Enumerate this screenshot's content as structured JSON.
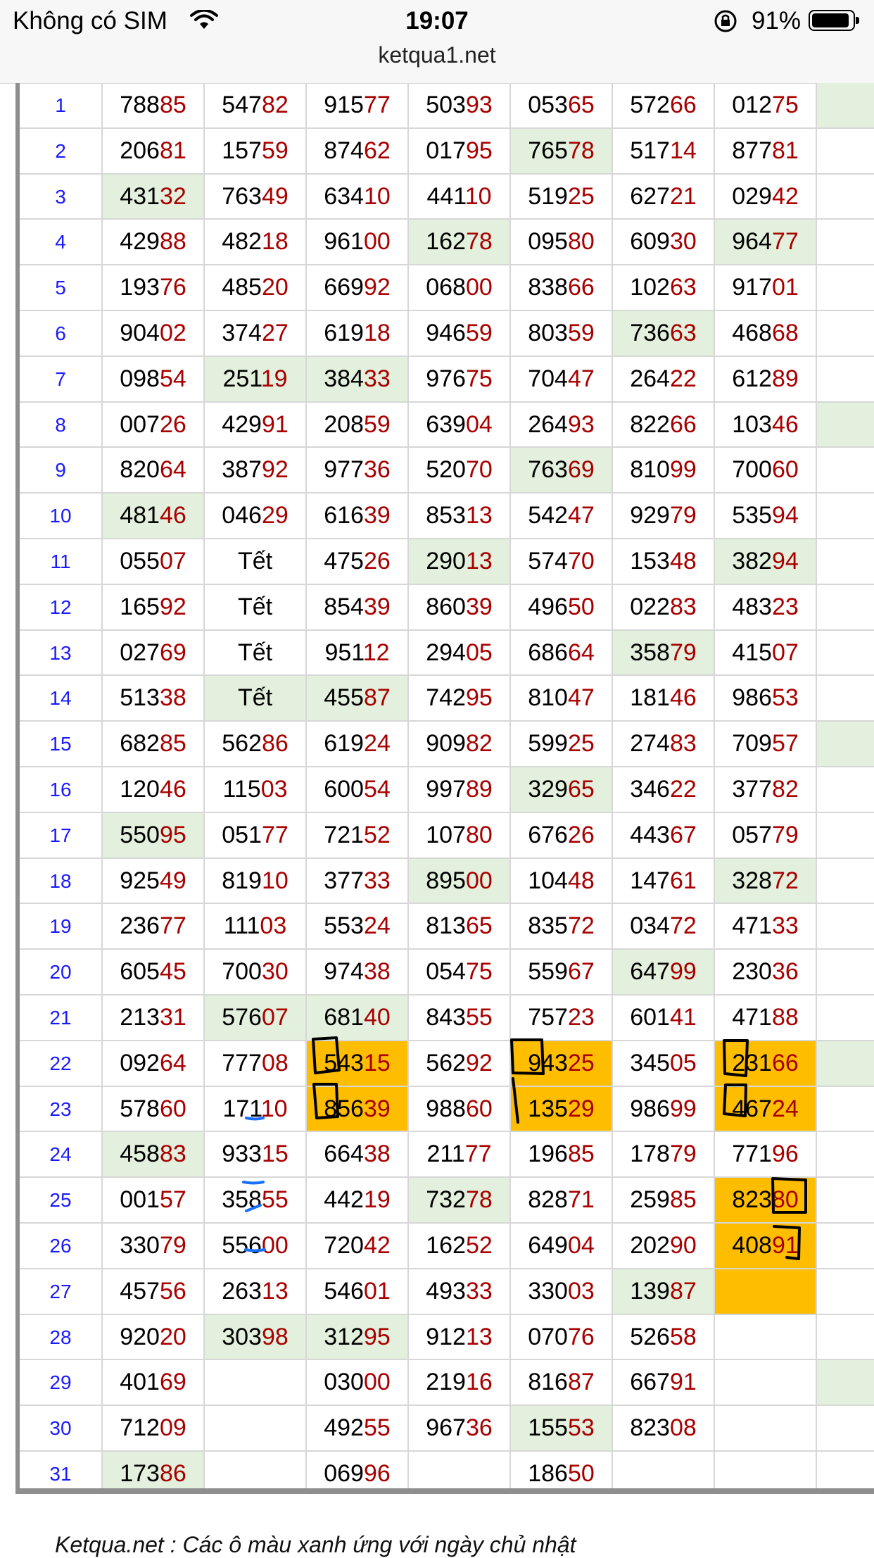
{
  "status_bar": {
    "carrier": "Không có SIM",
    "time": "19:07",
    "battery": "91%",
    "battery_level": 0.91
  },
  "browser": {
    "url": "ketqua1.net"
  },
  "table": {
    "rows": [
      {
        "day": "1",
        "cells": [
          "78885",
          "54782",
          "91577",
          "50393",
          "05365",
          "57266",
          "01275",
          ""
        ]
      },
      {
        "day": "2",
        "cells": [
          "20681",
          "15759",
          "87462",
          "01795",
          "76578",
          "51714",
          "87781",
          ""
        ]
      },
      {
        "day": "3",
        "cells": [
          "43132",
          "76349",
          "63410",
          "44110",
          "51925",
          "62721",
          "02942",
          ""
        ]
      },
      {
        "day": "4",
        "cells": [
          "42988",
          "48218",
          "96100",
          "16278",
          "09580",
          "60930",
          "96477",
          ""
        ]
      },
      {
        "day": "5",
        "cells": [
          "19376",
          "48520",
          "66992",
          "06800",
          "83866",
          "10263",
          "91701",
          ""
        ]
      },
      {
        "day": "6",
        "cells": [
          "90402",
          "37427",
          "61918",
          "94659",
          "80359",
          "73663",
          "46868",
          ""
        ]
      },
      {
        "day": "7",
        "cells": [
          "09854",
          "25119",
          "38433",
          "97675",
          "70447",
          "26422",
          "61289",
          ""
        ]
      },
      {
        "day": "8",
        "cells": [
          "00726",
          "42991",
          "20859",
          "63904",
          "26493",
          "82266",
          "10346",
          ""
        ]
      },
      {
        "day": "9",
        "cells": [
          "82064",
          "38792",
          "97736",
          "52070",
          "76369",
          "81099",
          "70060",
          ""
        ]
      },
      {
        "day": "10",
        "cells": [
          "48146",
          "04629",
          "61639",
          "85313",
          "54247",
          "92979",
          "53594",
          ""
        ]
      },
      {
        "day": "11",
        "cells": [
          "05507",
          "Tết",
          "47526",
          "29013",
          "57470",
          "15348",
          "38294",
          ""
        ]
      },
      {
        "day": "12",
        "cells": [
          "16592",
          "Tết",
          "85439",
          "86039",
          "49650",
          "02283",
          "48323",
          ""
        ]
      },
      {
        "day": "13",
        "cells": [
          "02769",
          "Tết",
          "95112",
          "29405",
          "68664",
          "35879",
          "41507",
          ""
        ]
      },
      {
        "day": "14",
        "cells": [
          "51338",
          "Tết",
          "45587",
          "74295",
          "81047",
          "18146",
          "98653",
          ""
        ]
      },
      {
        "day": "15",
        "cells": [
          "68285",
          "56286",
          "61924",
          "90982",
          "59925",
          "27483",
          "70957",
          ""
        ]
      },
      {
        "day": "16",
        "cells": [
          "12046",
          "11503",
          "60054",
          "99789",
          "32965",
          "34622",
          "37782",
          ""
        ]
      },
      {
        "day": "17",
        "cells": [
          "55095",
          "05177",
          "72152",
          "10780",
          "67626",
          "44367",
          "05779",
          ""
        ]
      },
      {
        "day": "18",
        "cells": [
          "92549",
          "81910",
          "37733",
          "89500",
          "10448",
          "14761",
          "32872",
          ""
        ]
      },
      {
        "day": "19",
        "cells": [
          "23677",
          "11103",
          "55324",
          "81365",
          "83572",
          "03472",
          "47133",
          ""
        ]
      },
      {
        "day": "20",
        "cells": [
          "60545",
          "70030",
          "97438",
          "05475",
          "55967",
          "64799",
          "23036",
          ""
        ]
      },
      {
        "day": "21",
        "cells": [
          "21331",
          "57607",
          "68140",
          "84355",
          "75723",
          "60141",
          "47188",
          ""
        ]
      },
      {
        "day": "22",
        "cells": [
          "09264",
          "77708",
          "54315",
          "56292",
          "94325",
          "34505",
          "23166",
          ""
        ]
      },
      {
        "day": "23",
        "cells": [
          "57860",
          "17110",
          "85639",
          "98860",
          "13529",
          "98699",
          "46724",
          ""
        ]
      },
      {
        "day": "24",
        "cells": [
          "45883",
          "93315",
          "66438",
          "21177",
          "19685",
          "17879",
          "77196",
          ""
        ]
      },
      {
        "day": "25",
        "cells": [
          "00157",
          "35855",
          "44219",
          "73278",
          "82871",
          "25985",
          "82380",
          ""
        ]
      },
      {
        "day": "26",
        "cells": [
          "33079",
          "55600",
          "72042",
          "16252",
          "64904",
          "20290",
          "40891",
          ""
        ]
      },
      {
        "day": "27",
        "cells": [
          "45756",
          "26313",
          "54601",
          "49333",
          "33003",
          "13987",
          "",
          ""
        ]
      },
      {
        "day": "28",
        "cells": [
          "92020",
          "30398",
          "31295",
          "91213",
          "07076",
          "52658",
          "",
          ""
        ]
      },
      {
        "day": "29",
        "cells": [
          "40169",
          "",
          "03000",
          "21916",
          "81687",
          "66791",
          "",
          ""
        ]
      },
      {
        "day": "30",
        "cells": [
          "71209",
          "",
          "49255",
          "96736",
          "15553",
          "82308",
          "",
          ""
        ]
      },
      {
        "day": "31",
        "cells": [
          "17386",
          "",
          "06996",
          "",
          "18650",
          "",
          "",
          ""
        ]
      }
    ],
    "green_cells": [
      [
        1,
        7
      ],
      [
        2,
        4
      ],
      [
        3,
        0
      ],
      [
        4,
        3
      ],
      [
        4,
        6
      ],
      [
        6,
        5
      ],
      [
        7,
        1
      ],
      [
        7,
        2
      ],
      [
        8,
        7
      ],
      [
        9,
        4
      ],
      [
        10,
        0
      ],
      [
        11,
        3
      ],
      [
        11,
        6
      ],
      [
        13,
        5
      ],
      [
        14,
        1
      ],
      [
        14,
        2
      ],
      [
        15,
        7
      ],
      [
        16,
        4
      ],
      [
        17,
        0
      ],
      [
        18,
        3
      ],
      [
        18,
        6
      ],
      [
        20,
        5
      ],
      [
        21,
        1
      ],
      [
        21,
        2
      ],
      [
        22,
        7
      ],
      [
        24,
        0
      ],
      [
        25,
        3
      ],
      [
        27,
        5
      ],
      [
        28,
        1
      ],
      [
        28,
        2
      ],
      [
        29,
        7
      ],
      [
        30,
        4
      ],
      [
        31,
        0
      ]
    ],
    "orange_cells": [
      [
        22,
        2
      ],
      [
        22,
        4
      ],
      [
        22,
        6
      ],
      [
        23,
        2
      ],
      [
        23,
        4
      ],
      [
        23,
        6
      ],
      [
        25,
        6
      ],
      [
        26,
        6
      ],
      [
        27,
        6
      ]
    ],
    "colors": {
      "green": "#e3f0dd",
      "orange": "#ffbd00",
      "red_digits": "#a80000",
      "index": "#1a1aff"
    }
  },
  "footnote": "Ketqua.net : Các ô màu xanh ứng với ngày chủ nhật"
}
